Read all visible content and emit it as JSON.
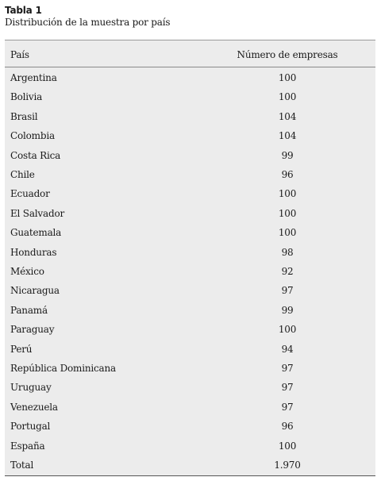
{
  "caption": {
    "title": "Tabla 1",
    "subtitle": "Distribución de la muestra por país"
  },
  "table": {
    "headers": [
      "País",
      "Número de empresas"
    ],
    "rows": [
      [
        "Argentina",
        "100"
      ],
      [
        "Bolivia",
        "100"
      ],
      [
        "Brasil",
        "104"
      ],
      [
        "Colombia",
        "104"
      ],
      [
        "Costa Rica",
        "99"
      ],
      [
        "Chile",
        "96"
      ],
      [
        "Ecuador",
        "100"
      ],
      [
        "El Salvador",
        "100"
      ],
      [
        "Guatemala",
        "100"
      ],
      [
        "Honduras",
        "98"
      ],
      [
        "México",
        "92"
      ],
      [
        "Nicaragua",
        "97"
      ],
      [
        "Panamá",
        "99"
      ],
      [
        "Paraguay",
        "100"
      ],
      [
        "Perú",
        "94"
      ],
      [
        "República Dominicana",
        "97"
      ],
      [
        "Uruguay",
        "97"
      ],
      [
        "Venezuela",
        "97"
      ],
      [
        "Portugal",
        "96"
      ],
      [
        "España",
        "100"
      ],
      [
        "Total",
        "1.970"
      ]
    ]
  }
}
